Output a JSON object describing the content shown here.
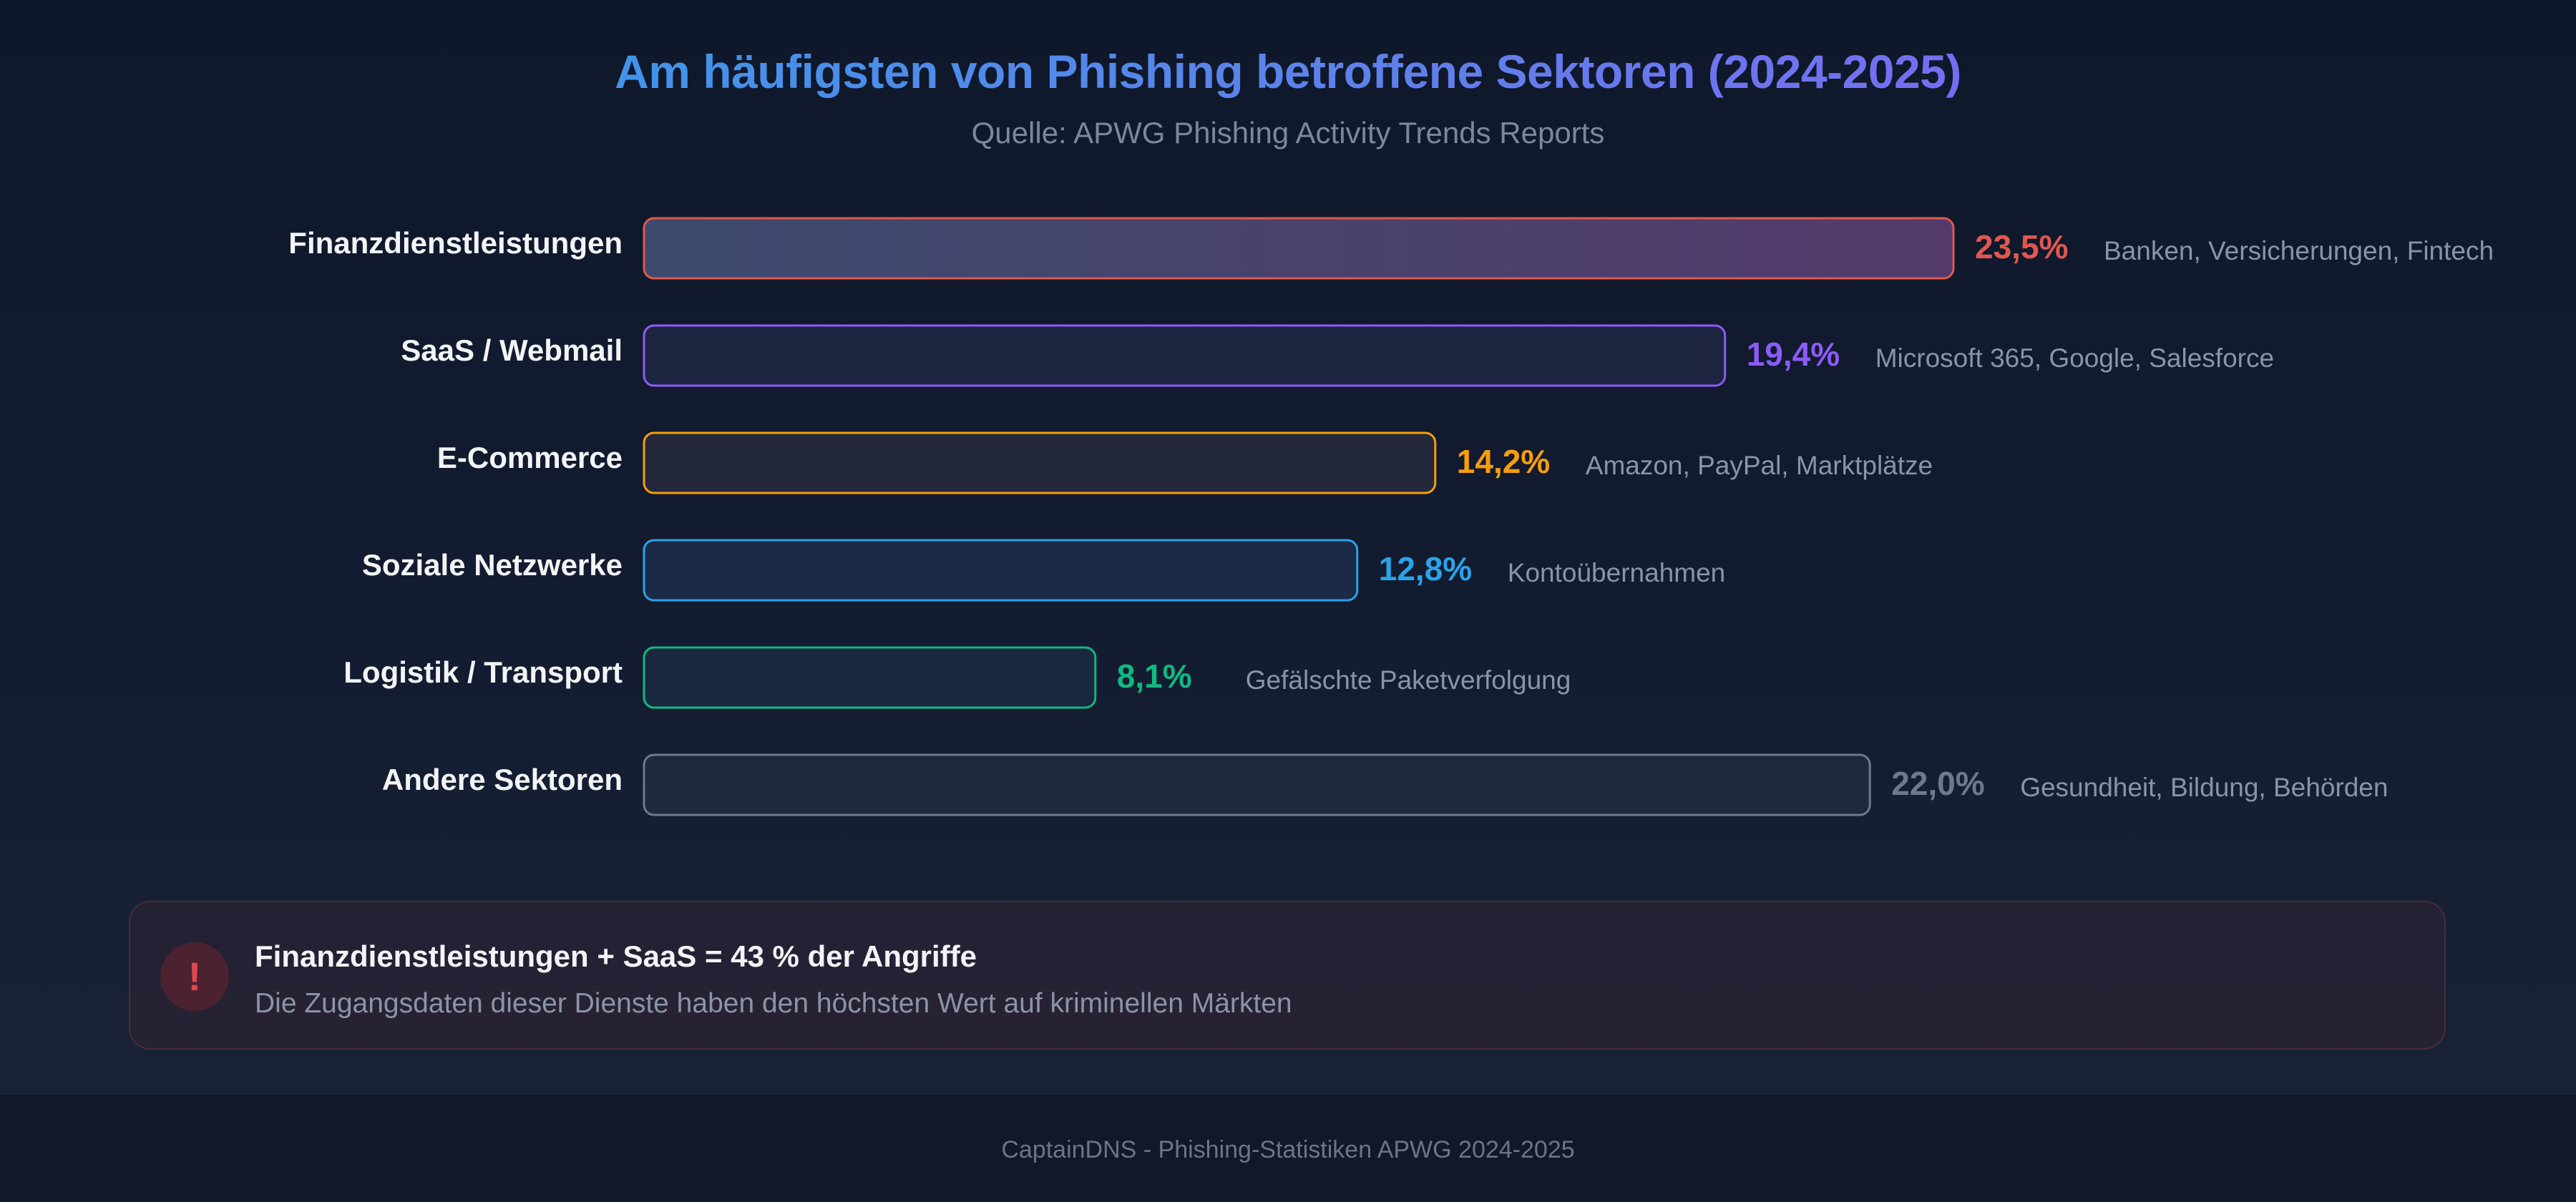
{
  "header": {
    "title": "Am häufigsten von Phishing betroffene Sektoren (2024-2025)",
    "subtitle": "Quelle: APWG Phishing Activity Trends Reports"
  },
  "chart_data": {
    "type": "bar",
    "orientation": "horizontal",
    "title": "Am häufigsten von Phishing betroffene Sektoren (2024-2025)",
    "subtitle": "Quelle: APWG Phishing Activity Trends Reports",
    "categories": [
      "Finanzdienstleistungen",
      "SaaS / Webmail",
      "E-Commerce",
      "Soziale Netzwerke",
      "Logistik / Transport",
      "Andere Sektoren"
    ],
    "values": [
      23.5,
      19.4,
      14.2,
      12.8,
      8.1,
      22.0
    ],
    "value_labels": [
      "23,5%",
      "19,4%",
      "14,2%",
      "12,8%",
      "8,1%",
      "22,0%"
    ],
    "descriptions": [
      "Banken, Versicherungen, Fintech",
      "Microsoft 365, Google, Salesforce",
      "Amazon, PayPal, Marktplätze",
      "Kontoübernahmen",
      "Gefälschte Paketverfolgung",
      "Gesundheit, Bildung, Behörden"
    ],
    "colors": [
      "#e0584f",
      "#8b5cf6",
      "#f59e0b",
      "#2aa3e8",
      "#10b981",
      "#6b7a90"
    ],
    "xlim": [
      0,
      23.5
    ],
    "grid": false,
    "legend": "none"
  },
  "callout": {
    "icon": "exclamation-icon",
    "icon_glyph": "!",
    "title": "Finanzdienstleistungen + SaaS = 43 % der Angriffe",
    "text": "Die Zugangsdaten dieser Dienste haben den höchsten Wert auf kriminellen Märkten"
  },
  "footer": {
    "text": "CaptainDNS - Phishing-Statistiken APWG 2024-2025"
  }
}
